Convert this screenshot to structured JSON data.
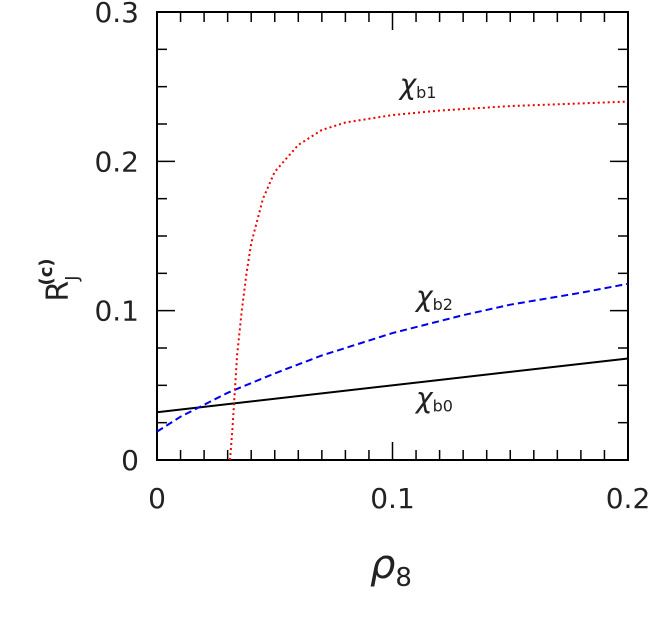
{
  "chart_data": {
    "type": "line",
    "x_label": {
      "main": "ρ",
      "sub": "8"
    },
    "y_label": {
      "main": "R",
      "sub": "J",
      "sup": "(c)"
    },
    "xlim": [
      0,
      0.2
    ],
    "ylim": [
      0,
      0.3
    ],
    "xticks": [
      0,
      0.1,
      0.2
    ],
    "yticks": [
      0,
      0.1,
      0.2,
      0.3
    ],
    "xminorticks": [
      0.01,
      0.02,
      0.03,
      0.04,
      0.05,
      0.06,
      0.07,
      0.08,
      0.09,
      0.11,
      0.12,
      0.13,
      0.14,
      0.15,
      0.16,
      0.17,
      0.18,
      0.19
    ],
    "yminorticks": [
      0.025,
      0.05,
      0.075,
      0.125,
      0.15,
      0.175,
      0.225,
      0.25,
      0.275
    ],
    "series": [
      {
        "name": "χb0",
        "label": {
          "text": "χ",
          "sub": "b0",
          "x": 0.11,
          "y": 0.035
        },
        "color": "#000000",
        "dash": "solid",
        "x": [
          0,
          0.2
        ],
        "values": [
          0.032,
          0.068
        ]
      },
      {
        "name": "χb2",
        "label": {
          "text": "χ",
          "sub": "b2",
          "x": 0.11,
          "y": 0.103
        },
        "color": "#0000ee",
        "dash": "dashed",
        "x": [
          0,
          0.01,
          0.02,
          0.03,
          0.05,
          0.07,
          0.1,
          0.13,
          0.15,
          0.18,
          0.2
        ],
        "values": [
          0.019,
          0.029,
          0.037,
          0.045,
          0.058,
          0.07,
          0.085,
          0.097,
          0.104,
          0.112,
          0.118
        ]
      },
      {
        "name": "χb1",
        "label": {
          "text": "χ",
          "sub": "b1",
          "x": 0.103,
          "y": 0.245
        },
        "color": "#ee0000",
        "dash": "dotted",
        "x": [
          0.031,
          0.032,
          0.033,
          0.034,
          0.036,
          0.038,
          0.04,
          0.045,
          0.05,
          0.06,
          0.07,
          0.08,
          0.1,
          0.12,
          0.15,
          0.2
        ],
        "values": [
          0,
          0.02,
          0.045,
          0.07,
          0.1,
          0.125,
          0.145,
          0.175,
          0.193,
          0.211,
          0.221,
          0.226,
          0.231,
          0.234,
          0.237,
          0.24
        ]
      }
    ]
  }
}
